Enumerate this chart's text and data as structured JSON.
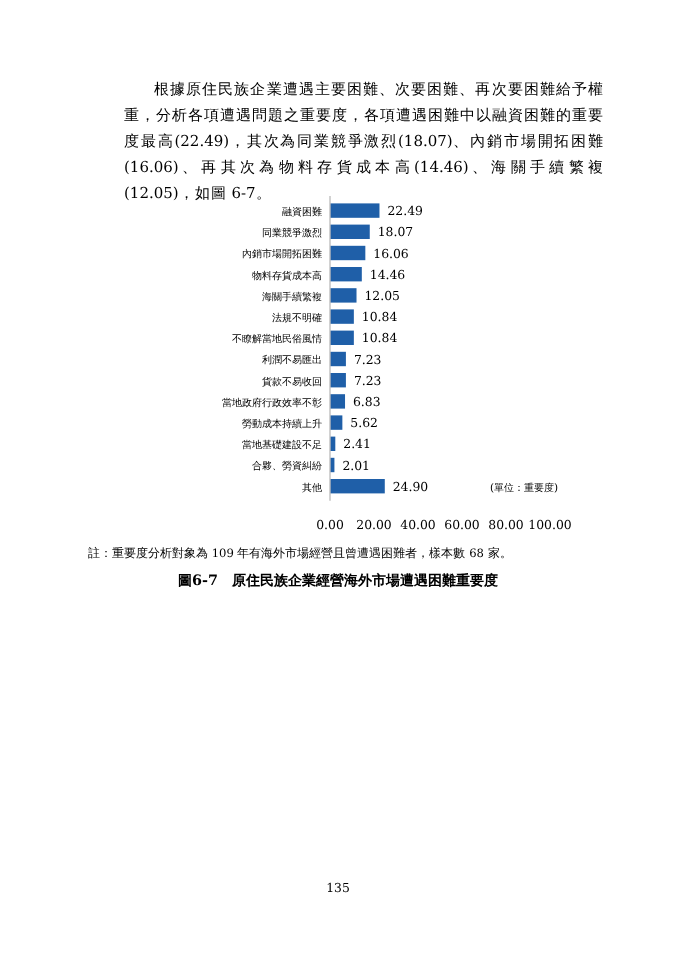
{
  "chart_data": {
    "type": "bar",
    "orientation": "horizontal",
    "subtitle": "根據原住民族企業遭遇主要困難、次要困難、再次要困難給予權重，分析各項遭遇問題之重要度，各項遭遇困難中以融資困難的重要度最高(22.49)，其次為同業競爭激烈(18.07)、內銷市場開拓困難(16.06)、再其次為物料存貨成本高(14.46)、海關手續繁複(12.05)，如圖 6-7。",
    "title": "圖6-7　原住民族企業經營海外市場遭遇困難重要度",
    "categories": [
      "融資困難",
      "同業競爭激烈",
      "內銷市場開拓困難",
      "物料存貨成本高",
      "海關手續繁複",
      "法規不明確",
      "不瞭解當地民俗風情",
      "利潤不易匯出",
      "貨款不易收回",
      "當地政府行政效率不彰",
      "勞動成本持續上升",
      "當地基礎建設不足",
      "合夥、勞資糾紛",
      "其他"
    ],
    "values": [
      22.49,
      18.07,
      16.06,
      14.46,
      12.05,
      10.84,
      10.84,
      7.23,
      7.23,
      6.83,
      5.62,
      2.41,
      2.01,
      24.9
    ],
    "value_labels": [
      "22.49",
      "18.07",
      "16.06",
      "14.46",
      "12.05",
      "10.84",
      "10.84",
      "7.23",
      "7.23",
      "6.83",
      "5.62",
      "2.41",
      "2.01",
      "24.90"
    ],
    "color": "#1f5fa8",
    "xlim": [
      0,
      100
    ],
    "xticks": [
      {
        "value": 0,
        "label": "0.00"
      },
      {
        "value": 20,
        "label": "20.00"
      },
      {
        "value": 40,
        "label": "40.00"
      },
      {
        "value": 60,
        "label": "60.00"
      },
      {
        "value": 80,
        "label": "80.00"
      },
      {
        "value": 100,
        "label": "100.00"
      }
    ],
    "annotations": [
      "(單位：重要度)",
      "註：重要度分析對象為 109 年有海外市場經營且曾遭遇困難者，樣本數 68 家。",
      "135"
    ]
  }
}
